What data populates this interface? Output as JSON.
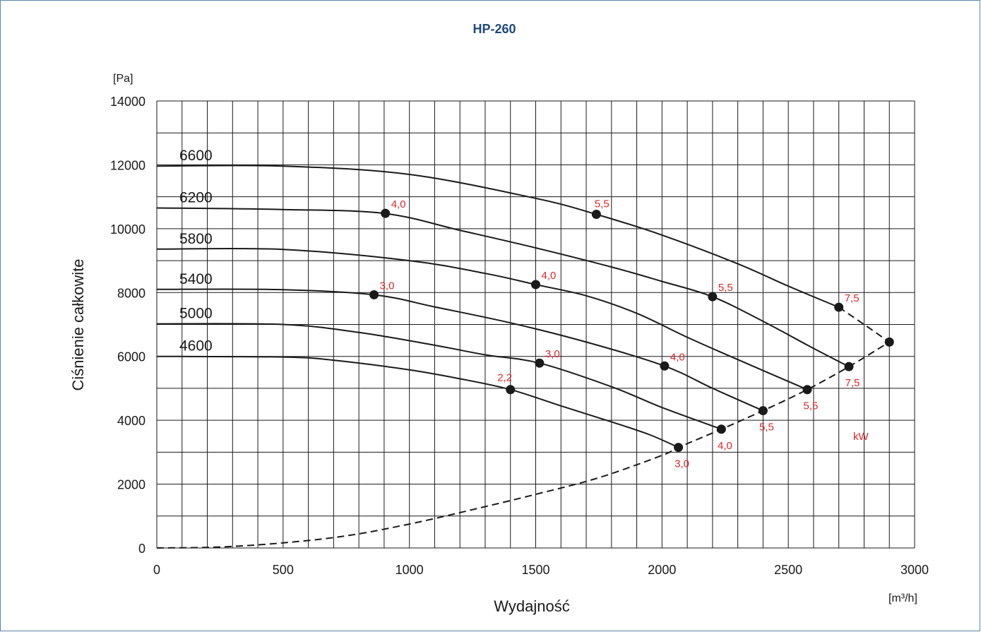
{
  "chart_data": {
    "type": "line",
    "title": "HP-260",
    "xlabel": "Wydajność",
    "ylabel": "Ciśnienie całkowite",
    "x_unit": "[m³/h]",
    "y_unit": "[Pa]",
    "xlim": [
      0,
      3000
    ],
    "ylim": [
      0,
      14000
    ],
    "x_ticks": [
      "0",
      "500",
      "1000",
      "1500",
      "2000",
      "2500",
      "3000"
    ],
    "y_ticks": [
      "0",
      "2000",
      "4000",
      "6000",
      "8000",
      "10000",
      "12000",
      "14000"
    ],
    "grid": true,
    "power_unit_label": "kW",
    "series": [
      {
        "name": "6600",
        "x": [
          0,
          500,
          1000,
          1500,
          1740,
          2000,
          2300,
          2500,
          2700
        ],
        "y": [
          11960,
          11960,
          11700,
          10950,
          10450,
          9800,
          8900,
          8200,
          7540
        ]
      },
      {
        "name": "6200",
        "x": [
          0,
          500,
          900,
          1200,
          1500,
          1800,
          2000,
          2200,
          2400,
          2600,
          2740
        ],
        "y": [
          10650,
          10600,
          10480,
          9950,
          9400,
          8800,
          8350,
          7870,
          7100,
          6250,
          5680
        ]
      },
      {
        "name": "5800",
        "x": [
          0,
          500,
          1000,
          1300,
          1500,
          1700,
          1900,
          2100,
          2300,
          2575
        ],
        "y": [
          9360,
          9350,
          9000,
          8600,
          8250,
          7900,
          7350,
          6600,
          5900,
          4960
        ]
      },
      {
        "name": "5400",
        "x": [
          0,
          500,
          860,
          1100,
          1400,
          1700,
          2010,
          2200,
          2400
        ],
        "y": [
          8100,
          8090,
          7930,
          7550,
          7050,
          6450,
          5700,
          5000,
          4300
        ]
      },
      {
        "name": "5000",
        "x": [
          0,
          500,
          800,
          1100,
          1300,
          1515,
          1800,
          2000,
          2235
        ],
        "y": [
          7020,
          7000,
          6750,
          6350,
          6050,
          5790,
          5050,
          4400,
          3720
        ]
      },
      {
        "name": "4600",
        "x": [
          0,
          500,
          700,
          1000,
          1200,
          1400,
          1600,
          1800,
          1950,
          2065
        ],
        "y": [
          6000,
          5980,
          5880,
          5580,
          5300,
          4960,
          4450,
          3950,
          3550,
          3150
        ]
      }
    ],
    "power_points": [
      {
        "x": 905,
        "y": 10480,
        "label": "4,0",
        "pos": "ne"
      },
      {
        "x": 1740,
        "y": 10450,
        "label": "5,5",
        "pos": "n"
      },
      {
        "x": 2200,
        "y": 7870,
        "label": "5,5",
        "pos": "ne"
      },
      {
        "x": 2700,
        "y": 7540,
        "label": "7,5",
        "pos": "ne"
      },
      {
        "x": 1500,
        "y": 8250,
        "label": "4,0",
        "pos": "ne"
      },
      {
        "x": 860,
        "y": 7930,
        "label": "3,0",
        "pos": "ne"
      },
      {
        "x": 2010,
        "y": 5700,
        "label": "4,0",
        "pos": "ne"
      },
      {
        "x": 1515,
        "y": 5790,
        "label": "3,0",
        "pos": "ne"
      },
      {
        "x": 1400,
        "y": 4960,
        "label": "2,2",
        "pos": "nw"
      },
      {
        "x": 2065,
        "y": 3150,
        "label": "3,0",
        "pos": "s"
      },
      {
        "x": 2235,
        "y": 3720,
        "label": "4,0",
        "pos": "s"
      },
      {
        "x": 2400,
        "y": 4300,
        "label": "5,5",
        "pos": "s"
      },
      {
        "x": 2575,
        "y": 4960,
        "label": "5,5",
        "pos": "s"
      },
      {
        "x": 2740,
        "y": 5680,
        "label": "7,5",
        "pos": "s"
      },
      {
        "x": 2900,
        "y": 6450,
        "label": "",
        "pos": ""
      }
    ],
    "limit_curve_lower": {
      "x": [
        0,
        250,
        500,
        750,
        1000,
        1250,
        1500,
        1750,
        2000,
        2065,
        2235,
        2400,
        2575,
        2740,
        2900
      ],
      "y": [
        0,
        30,
        160,
        380,
        750,
        1200,
        1680,
        2200,
        2900,
        3150,
        3720,
        4300,
        4960,
        5680,
        6450
      ]
    },
    "limit_curve_upper": {
      "x": [
        2700,
        2800,
        2900
      ],
      "y": [
        7540,
        7000,
        6450
      ]
    }
  }
}
